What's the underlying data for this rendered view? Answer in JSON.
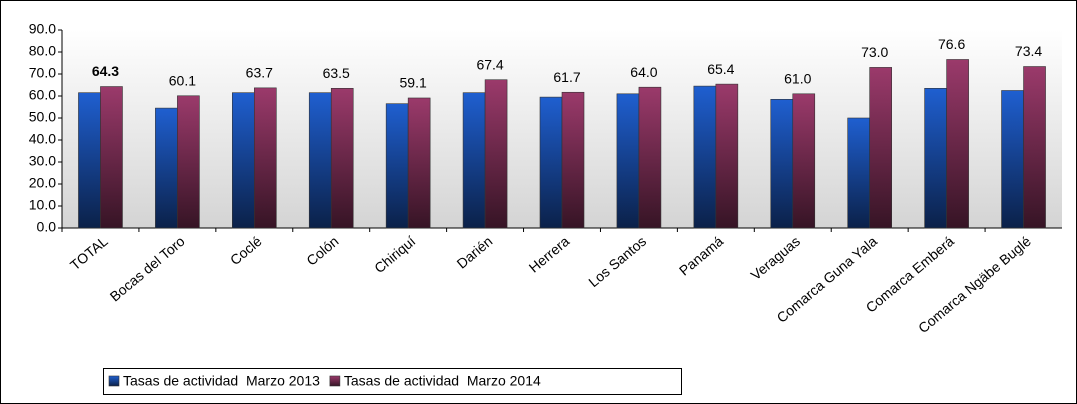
{
  "chart_data": {
    "type": "bar",
    "categories": [
      "TOTAL",
      "Bocas del Toro",
      "Coclé",
      "Colón",
      "Chiriquí",
      "Darién",
      "Herrera",
      "Los Santos",
      "Panamá",
      "Veraguas",
      "Comarca Guna Yala",
      "Comarca Emberá",
      "Comarca Ngäbe Buglé"
    ],
    "series": [
      {
        "name": "Tasas de actividad  Marzo 2013",
        "color": "#1f5fd0",
        "values": [
          61.5,
          54.5,
          61.5,
          61.5,
          56.5,
          61.5,
          59.5,
          61,
          64.5,
          58.5,
          50,
          63.5,
          62.5
        ]
      },
      {
        "name": "Tasas de actividad  Marzo 2014",
        "color": "#9b3a6b",
        "values": [
          64.3,
          60.1,
          63.7,
          63.5,
          59.1,
          67.4,
          61.7,
          64,
          65.4,
          61,
          73,
          76.6,
          73.4
        ],
        "value_labels": [
          "64.3",
          "60.1",
          "63.7",
          "63.5",
          "59.1",
          "67.4",
          "61.7",
          "64.0",
          "65.4",
          "61.0",
          "73.0",
          "76.6",
          "73.4"
        ]
      }
    ],
    "ylim": [
      0,
      90
    ],
    "yticks": [
      {
        "value": 0,
        "label": "0.0"
      },
      {
        "value": 10,
        "label": "10.0"
      },
      {
        "value": 20,
        "label": "20.0"
      },
      {
        "value": 30,
        "label": "30.0"
      },
      {
        "value": 40,
        "label": "40.0"
      },
      {
        "value": 50,
        "label": "50.0"
      },
      {
        "value": 60,
        "label": "60.0"
      },
      {
        "value": 70,
        "label": "70.0"
      },
      {
        "value": 80,
        "label": "80.0"
      },
      {
        "value": 90,
        "label": "90.0"
      }
    ],
    "grid": false,
    "legend": "bottom-left"
  }
}
